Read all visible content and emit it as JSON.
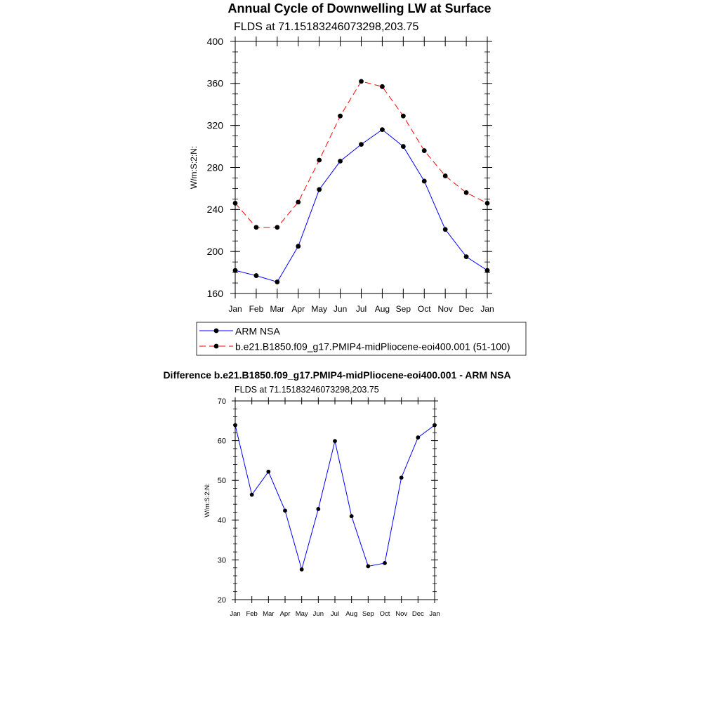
{
  "title": "Annual Cycle of Downwelling LW at Surface",
  "chart_data": [
    {
      "type": "line",
      "subtitle": "FLDS at 71.15183246073298,203.75",
      "ylabel": "W/m:S:2:N:",
      "xlabel": "",
      "ylim": [
        160,
        400
      ],
      "yticks": [
        "160",
        "200",
        "240",
        "280",
        "320",
        "360",
        "400"
      ],
      "categories": [
        "Jan",
        "Feb",
        "Mar",
        "Apr",
        "May",
        "Jun",
        "Jul",
        "Aug",
        "Sep",
        "Oct",
        "Nov",
        "Dec",
        "Jan"
      ],
      "grid": false,
      "legend": "bottom",
      "series": [
        {
          "name": "ARM NSA",
          "color": "#0000ff",
          "dash": "solid",
          "values": [
            182,
            177,
            171,
            205,
            259,
            286,
            302,
            316,
            300,
            267,
            221,
            195,
            182
          ]
        },
        {
          "name": "b.e21.B1850.f09_g17.PMIP4-midPliocene-eoi400.001 (51-100)",
          "color": "#ff0000",
          "dash": "dashed",
          "values": [
            246,
            223,
            223,
            247,
            287,
            329,
            362,
            357,
            329,
            296,
            272,
            256,
            246
          ]
        }
      ]
    },
    {
      "type": "line",
      "title": "Difference b.e21.B1850.f09_g17.PMIP4-midPliocene-eoi400.001 - ARM NSA",
      "subtitle": "FLDS at 71.15183246073298,203.75",
      "ylabel": "W/m:S:2:N:",
      "xlabel": "",
      "ylim": [
        20,
        70
      ],
      "yticks": [
        "20",
        "30",
        "40",
        "50",
        "60",
        "70"
      ],
      "categories": [
        "Jan",
        "Feb",
        "Mar",
        "Apr",
        "May",
        "Jun",
        "Jul",
        "Aug",
        "Sep",
        "Oct",
        "Nov",
        "Dec",
        "Jan"
      ],
      "grid": false,
      "series": [
        {
          "color": "#0000ff",
          "values": [
            63.9,
            46.4,
            52.2,
            42.4,
            27.6,
            42.8,
            59.9,
            41.0,
            28.4,
            29.2,
            50.7,
            60.8,
            63.9
          ]
        }
      ]
    }
  ]
}
